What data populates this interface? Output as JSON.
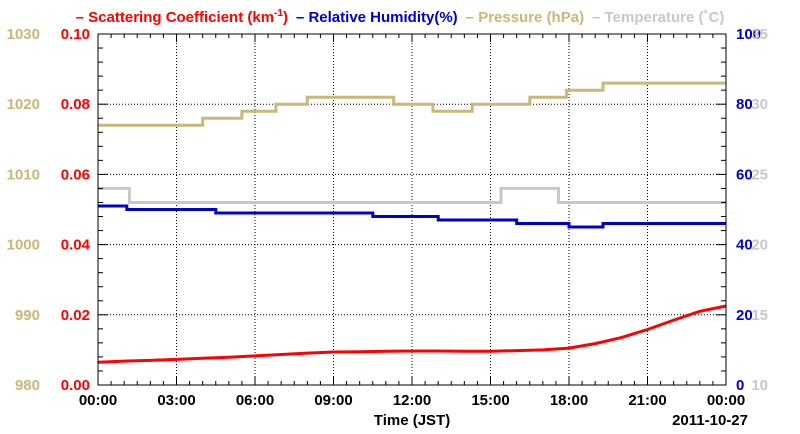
{
  "chart_data": {
    "type": "line",
    "xlabel": "Time (JST)",
    "date_label": "2011-10-27",
    "x_ticks": [
      "00:00",
      "03:00",
      "06:00",
      "09:00",
      "12:00",
      "15:00",
      "18:00",
      "21:00",
      "00:00"
    ],
    "xlim_hours": [
      0,
      24
    ],
    "grid": true,
    "legend_position": "top",
    "axes": {
      "scattering": {
        "ylim": [
          0.0,
          0.1
        ],
        "ticks": [
          "0.00",
          "0.02",
          "0.04",
          "0.06",
          "0.08",
          "0.10"
        ],
        "color": "#ff0000",
        "side": "left-inner"
      },
      "pressure": {
        "ylim": [
          980,
          1030
        ],
        "ticks": [
          "980",
          "990",
          "1000",
          "1010",
          "1020",
          "1030"
        ],
        "color": "#c8b87a",
        "side": "left-outer"
      },
      "humidity": {
        "ylim": [
          0,
          100
        ],
        "ticks": [
          "0",
          "20",
          "40",
          "60",
          "80",
          "100"
        ],
        "color": "#0000cc",
        "side": "right-inner"
      },
      "temperature": {
        "ylim": [
          10,
          35
        ],
        "ticks": [
          "10",
          "15",
          "20",
          "25",
          "30",
          "35"
        ],
        "color": "#c8c8c8",
        "side": "right-outer"
      }
    },
    "legend": [
      {
        "key": "scattering",
        "marker": "–",
        "text": "Scattering Coefficient (km",
        "sup": "-1",
        "tail": ")",
        "color": "#ff0000"
      },
      {
        "key": "humidity",
        "marker": "–",
        "text": "Relative Humidity(%)",
        "sup": "",
        "tail": "",
        "color": "#0000cc"
      },
      {
        "key": "pressure",
        "marker": "–",
        "text": "Pressure (hPa)",
        "sup": "",
        "tail": "",
        "color": "#c8b87a"
      },
      {
        "key": "temperature",
        "marker": "–",
        "text": "Temperature (˚C)",
        "sup": "",
        "tail": "",
        "color": "#c8c8c8"
      }
    ],
    "series": [
      {
        "name": "Scattering Coefficient (km-1)",
        "axis": "scattering",
        "color": "#ff0000",
        "x_hours": [
          0,
          1,
          2,
          3,
          4,
          5,
          6,
          7,
          8,
          9,
          10,
          11,
          12,
          13,
          14,
          15,
          16,
          17,
          18,
          19,
          20,
          21,
          22,
          23,
          24
        ],
        "values": [
          0.0065,
          0.0068,
          0.007,
          0.0073,
          0.0076,
          0.0079,
          0.0083,
          0.0087,
          0.0091,
          0.0094,
          0.0095,
          0.0096,
          0.0097,
          0.0097,
          0.0096,
          0.0096,
          0.0098,
          0.01,
          0.0105,
          0.0118,
          0.0135,
          0.0158,
          0.0185,
          0.021,
          0.0225
        ]
      },
      {
        "name": "Relative Humidity(%)",
        "axis": "humidity",
        "color": "#0000cc",
        "x_hours": [
          0,
          1.0,
          1.1,
          1.25,
          4.5,
          10.5,
          13.0,
          16.0,
          18.0,
          19.3,
          24
        ],
        "values": [
          51,
          51,
          50,
          50,
          49,
          48,
          47,
          46,
          45,
          46,
          46
        ]
      },
      {
        "name": "Pressure (hPa)",
        "axis": "pressure",
        "color": "#c8b87a",
        "x_hours": [
          0,
          2.5,
          4.0,
          5.5,
          6.8,
          8.0,
          11.3,
          12.8,
          14.3,
          16.5,
          17.9,
          19.3,
          24
        ],
        "values": [
          1017,
          1017,
          1018,
          1019,
          1020,
          1021,
          1020,
          1019,
          1020,
          1021,
          1022,
          1023,
          1023
        ]
      },
      {
        "name": "Temperature (˚C)",
        "axis": "temperature",
        "color": "#c8c8c8",
        "x_hours": [
          0,
          1.2,
          15.4,
          17.6,
          24
        ],
        "values": [
          24,
          23,
          24,
          23,
          23
        ]
      }
    ]
  }
}
